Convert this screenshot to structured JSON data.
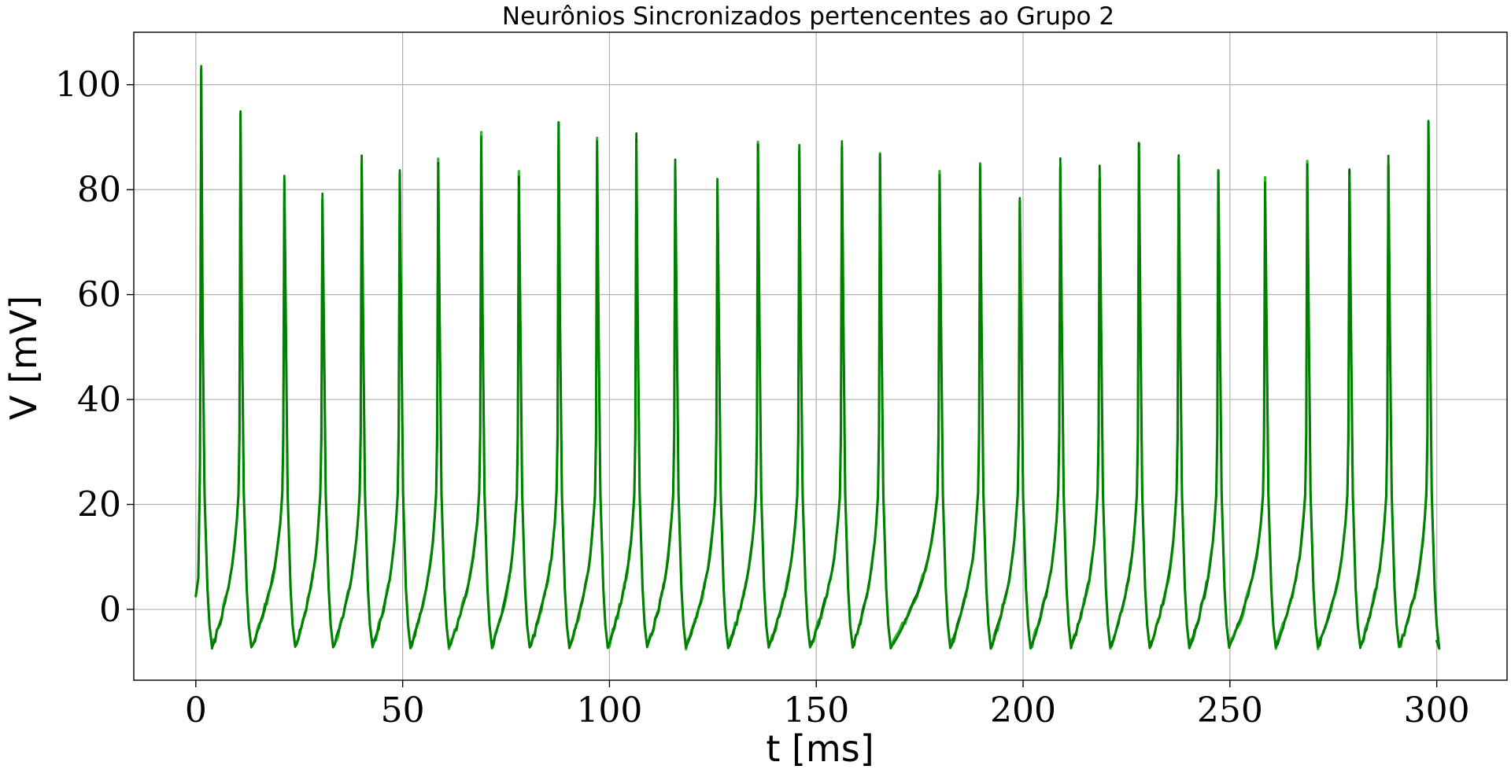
{
  "chart_data": {
    "type": "line",
    "title": "Neurônios Sincronizados pertencentes ao Grupo 2",
    "xlabel": "t [ms]",
    "ylabel": "V [mV]",
    "xlim": [
      -15,
      317
    ],
    "ylim": [
      -13.5,
      110
    ],
    "x_ticks": [
      0,
      50,
      100,
      150,
      200,
      250,
      300
    ],
    "y_ticks": [
      0,
      20,
      40,
      60,
      80,
      100
    ],
    "x_tick_labels": [
      "0",
      "50",
      "100",
      "150",
      "200",
      "250",
      "300"
    ],
    "y_tick_labels": [
      "0",
      "20",
      "40",
      "60",
      "80",
      "100"
    ],
    "grid": true,
    "legend": "none",
    "colors": [
      "#008000",
      "#2eb82e",
      "#006400"
    ],
    "spike_times": [
      1.3,
      10.8,
      21.4,
      30.6,
      40.1,
      49.3,
      58.6,
      69.0,
      78.1,
      87.7,
      97.0,
      106.5,
      115.9,
      126.1,
      135.9,
      145.9,
      156.2,
      165.4,
      179.8,
      189.6,
      199.2,
      209.0,
      218.5,
      228.0,
      237.6,
      247.2,
      258.5,
      268.7,
      278.9,
      288.3,
      298.0
    ],
    "spike_peaks": [
      104.0,
      94.0,
      82.2,
      79.0,
      85.8,
      83.7,
      84.4,
      90.0,
      81.6,
      92.8,
      89.3,
      89.5,
      85.5,
      81.5,
      87.8,
      88.0,
      89.2,
      87.3,
      82.8,
      85.3,
      78.2,
      84.6,
      83.2,
      87.5,
      86.7,
      83.4,
      81.0,
      84.2,
      83.0,
      86.6,
      92.5
    ],
    "trough_value": -7.2,
    "initial_value": 2.5,
    "final_value": -6.0,
    "t_end": 300
  }
}
